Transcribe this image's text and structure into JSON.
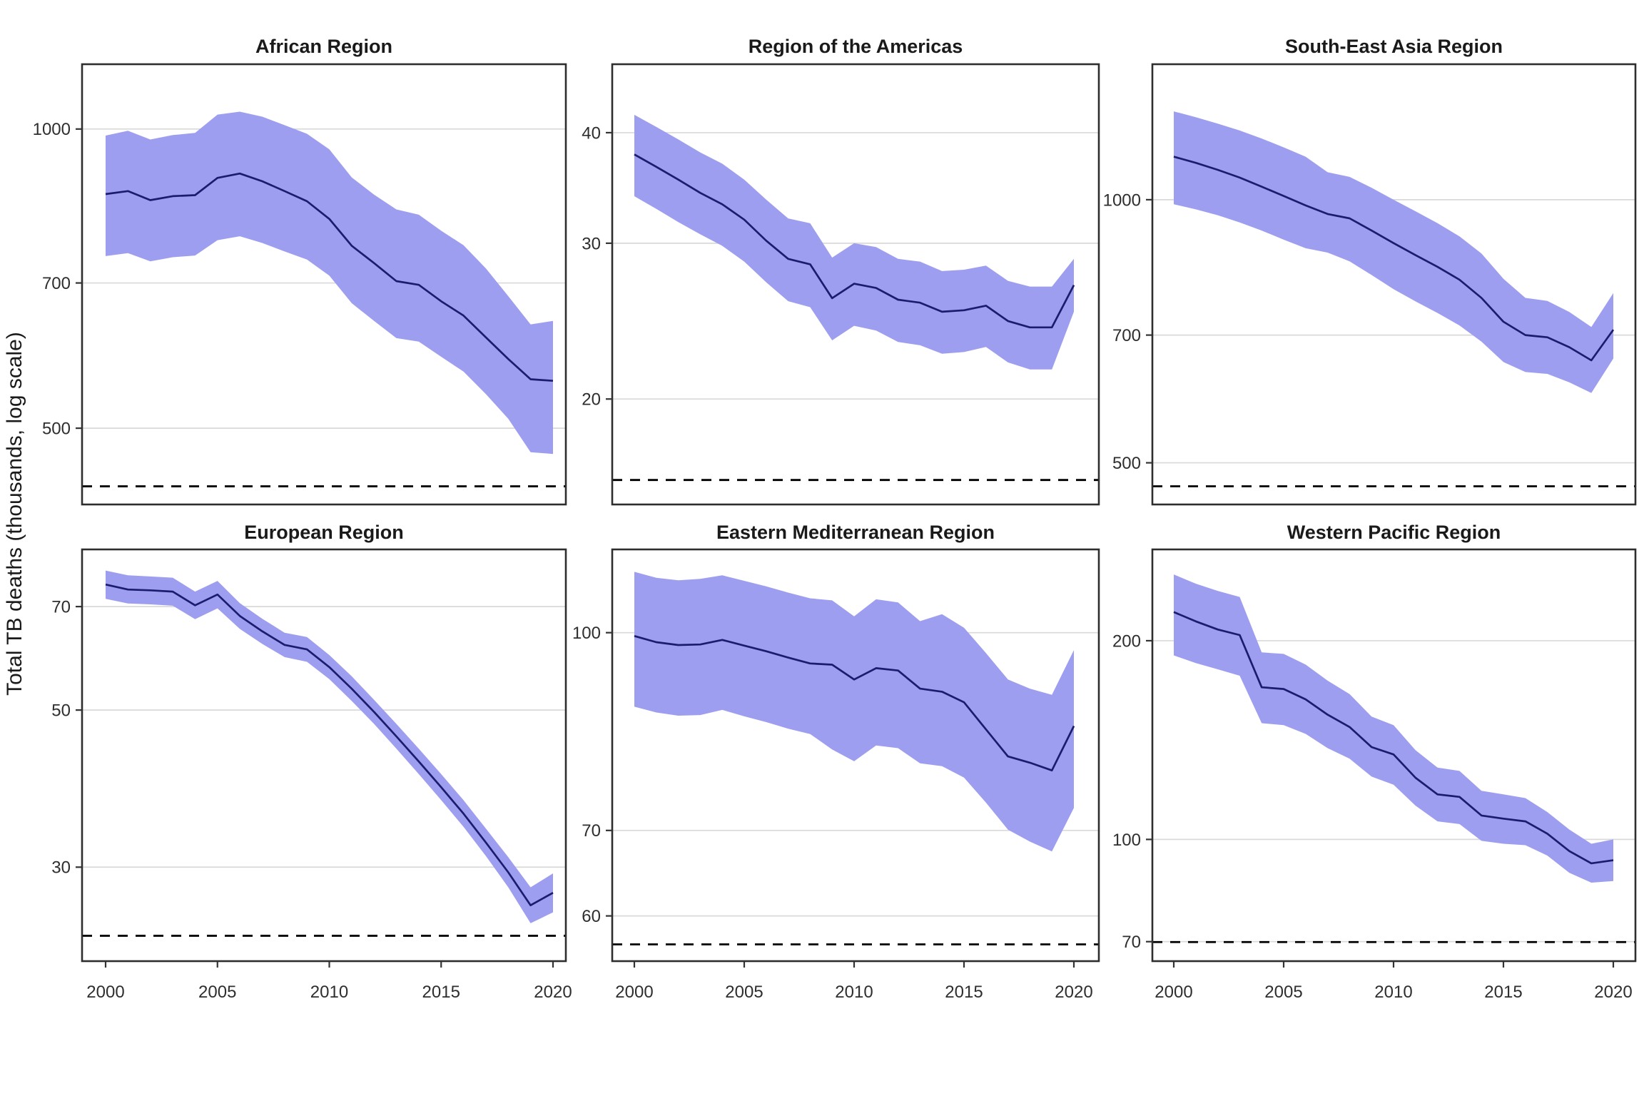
{
  "figure": {
    "y_axis_label": "Total TB deaths (thousands, log scale)",
    "x_tick_labels": [
      "2000",
      "2005",
      "2010",
      "2015",
      "2020"
    ],
    "colors": {
      "ribbon": "#9e9ef0",
      "line": "#1c1c6e",
      "grid": "#d9d9d9",
      "border": "#2e2e2e",
      "target_line": "#000000",
      "title_text": "#1a1a1a",
      "tick_text": "#2e2e2e"
    }
  },
  "chart_data": [
    {
      "type": "area",
      "title": "African Region",
      "y_scale": "log",
      "grid": "y-major-only",
      "legend_position": "none",
      "x": {
        "start": 2000,
        "end": 2020,
        "step": 1
      },
      "y_ticks": [
        1000,
        700,
        500
      ],
      "ylim": [
        419,
        1162
      ],
      "target_dashed": 437,
      "center": [
        860,
        866,
        848,
        856,
        858,
        893,
        902,
        886,
        866,
        846,
        812,
        763,
        733,
        703,
        697,
        671,
        649,
        617,
        587,
        560,
        558
      ],
      "lower": [
        745,
        750,
        736,
        743,
        746,
        773,
        780,
        768,
        753,
        739,
        712,
        668,
        641,
        616,
        611,
        590,
        570,
        541,
        511,
        473,
        471
      ],
      "upper": [
        985,
        996,
        976,
        986,
        991,
        1034,
        1041,
        1029,
        1009,
        989,
        954,
        894,
        859,
        830,
        820,
        790,
        764,
        724,
        679,
        636,
        641
      ]
    },
    {
      "type": "area",
      "title": "Region of the Americas",
      "y_scale": "log",
      "grid": "y-major-only",
      "legend_position": "none",
      "x": {
        "start": 2000,
        "end": 2020,
        "step": 1
      },
      "y_ticks": [
        40,
        30,
        20
      ],
      "ylim": [
        15.2,
        47.8
      ],
      "target_dashed": 16.2,
      "center": [
        37.8,
        36.6,
        35.4,
        34.2,
        33.2,
        31.9,
        30.2,
        28.8,
        28.4,
        26.0,
        27.0,
        26.7,
        25.9,
        25.7,
        25.1,
        25.2,
        25.5,
        24.5,
        24.1,
        24.1,
        26.9
      ],
      "lower": [
        33.9,
        32.8,
        31.7,
        30.7,
        29.8,
        28.6,
        27.1,
        25.8,
        25.4,
        23.3,
        24.2,
        23.9,
        23.2,
        23.0,
        22.5,
        22.6,
        22.9,
        22.0,
        21.6,
        21.6,
        25.1
      ],
      "upper": [
        41.9,
        40.6,
        39.3,
        38.0,
        36.9,
        35.4,
        33.6,
        32.0,
        31.6,
        28.9,
        30.0,
        29.7,
        28.8,
        28.6,
        27.9,
        28.0,
        28.3,
        27.2,
        26.8,
        26.8,
        28.8
      ]
    },
    {
      "type": "area",
      "title": "South-East Asia Region",
      "y_scale": "log",
      "grid": "y-major-only",
      "legend_position": "none",
      "x": {
        "start": 2000,
        "end": 2020,
        "step": 1
      },
      "y_ticks": [
        1000,
        700,
        500
      ],
      "ylim": [
        448,
        1429
      ],
      "target_dashed": 470,
      "center": [
        1120,
        1102,
        1082,
        1060,
        1035,
        1010,
        985,
        963,
        952,
        922,
        892,
        864,
        838,
        810,
        772,
        725,
        700,
        696,
        678,
        655,
        710
      ],
      "lower": [
        988,
        975,
        960,
        942,
        922,
        900,
        880,
        870,
        850,
        820,
        790,
        765,
        742,
        718,
        688,
        652,
        635,
        632,
        618,
        601,
        658
      ],
      "upper": [
        1262,
        1243,
        1222,
        1200,
        1175,
        1148,
        1120,
        1075,
        1062,
        1032,
        1000,
        970,
        940,
        908,
        868,
        812,
        772,
        766,
        744,
        715,
        782
      ]
    },
    {
      "type": "area",
      "title": "European Region",
      "y_scale": "log",
      "grid": "y-major-only",
      "legend_position": "none",
      "x": {
        "start": 2000,
        "end": 2020,
        "step": 1
      },
      "y_ticks": [
        70,
        50,
        30
      ],
      "ylim": [
        22.1,
        84.3
      ],
      "target_dashed": 24.0,
      "center": [
        75.2,
        74.0,
        73.8,
        73.5,
        70.3,
        72.8,
        67.9,
        64.6,
        61.8,
        60.9,
        57.5,
        53.6,
        49.7,
        45.9,
        42.3,
        38.9,
        35.7,
        32.5,
        29.5,
        26.5,
        27.6
      ],
      "lower": [
        71.8,
        70.7,
        70.5,
        70.2,
        67.2,
        69.6,
        65.1,
        62.0,
        59.4,
        58.5,
        55.3,
        51.5,
        47.8,
        44.1,
        40.6,
        37.3,
        34.2,
        31.1,
        28.1,
        25.0,
        25.9
      ],
      "upper": [
        78.7,
        77.5,
        77.2,
        76.9,
        73.5,
        76.1,
        70.8,
        67.3,
        64.3,
        63.4,
        59.8,
        55.8,
        51.7,
        47.8,
        44.1,
        40.6,
        37.3,
        34.0,
        31.0,
        28.1,
        29.4
      ]
    },
    {
      "type": "area",
      "title": "Eastern Mediterranean Region",
      "y_scale": "log",
      "grid": "y-major-only",
      "legend_position": "none",
      "x": {
        "start": 2000,
        "end": 2020,
        "step": 1
      },
      "y_ticks": [
        100,
        70,
        60
      ],
      "ylim": [
        55.3,
        116.2
      ],
      "target_dashed": 57.0,
      "center": [
        99.4,
        98.3,
        97.8,
        97.9,
        98.7,
        97.7,
        96.7,
        95.6,
        94.6,
        94.4,
        91.9,
        93.8,
        93.4,
        90.4,
        89.9,
        88.2,
        84.0,
        80.0,
        79.1,
        78.0,
        84.5
      ],
      "lower": [
        87.5,
        86.6,
        86.1,
        86.2,
        87.0,
        86.0,
        85.1,
        84.1,
        83.3,
        81.0,
        79.3,
        81.6,
        81.2,
        79.0,
        78.6,
        77.0,
        73.6,
        70.1,
        68.6,
        67.4,
        72.9
      ],
      "upper": [
        111.6,
        110.4,
        109.9,
        110.2,
        110.9,
        109.8,
        108.7,
        107.5,
        106.4,
        106.0,
        103.0,
        106.2,
        105.6,
        102.1,
        103.4,
        100.9,
        96.4,
        91.9,
        90.4,
        89.4,
        96.9
      ]
    },
    {
      "type": "area",
      "title": "Western Pacific Region",
      "y_scale": "log",
      "grid": "y-major-only",
      "legend_position": "none",
      "x": {
        "start": 2000,
        "end": 2020,
        "step": 1
      },
      "y_ticks": [
        200,
        100,
        70
      ],
      "ylim": [
        65.4,
        275
      ],
      "target_dashed": 69.9,
      "center": [
        221,
        214,
        208,
        204,
        170,
        169,
        163,
        154.5,
        148,
        138,
        134.5,
        124,
        117,
        116,
        108.7,
        107.5,
        106.5,
        102,
        96,
        92,
        93
      ],
      "lower": [
        190,
        185,
        181,
        177,
        150,
        149,
        144.5,
        137.5,
        132.5,
        124.5,
        121,
        112.5,
        106.5,
        105.5,
        99.5,
        98.5,
        98,
        94.5,
        89,
        86,
        86.5
      ],
      "upper": [
        252,
        244,
        238,
        233,
        192,
        191,
        184,
        174,
        166,
        153.5,
        149,
        136.5,
        128.5,
        127,
        118.5,
        117,
        115.5,
        110,
        103.5,
        98.5,
        100
      ]
    }
  ]
}
